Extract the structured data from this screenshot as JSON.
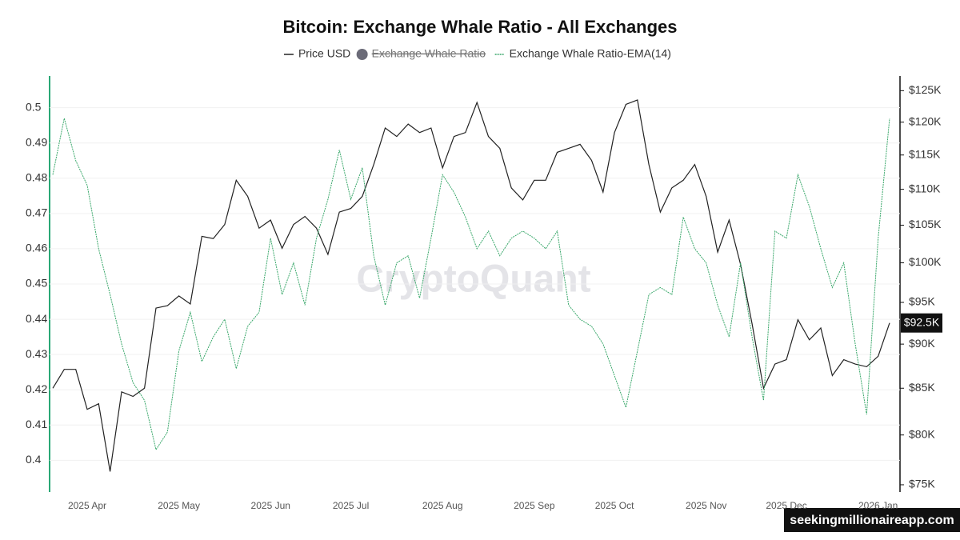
{
  "chart_data": {
    "type": "line",
    "title": "Bitcoin: Exchange Whale Ratio - All Exchanges",
    "watermark": "CryptoQuant",
    "badge": "seekingmillionaireapp.com",
    "categories": [
      null,
      null,
      null,
      "2025 Apr",
      null,
      null,
      null,
      null,
      null,
      null,
      null,
      "2025 May",
      null,
      null,
      null,
      null,
      null,
      null,
      null,
      "2025 Jun",
      null,
      null,
      null,
      null,
      null,
      null,
      "2025 Jul",
      null,
      null,
      null,
      null,
      null,
      null,
      null,
      "2025 Aug",
      null,
      null,
      null,
      null,
      null,
      null,
      null,
      "2025 Sep",
      null,
      null,
      null,
      null,
      null,
      null,
      "2025 Oct",
      null,
      null,
      null,
      null,
      null,
      null,
      null,
      "2025 Nov",
      null,
      null,
      null,
      null,
      null,
      null,
      "2025 Dec",
      null,
      null,
      null,
      null,
      null,
      null,
      null,
      "2026 Jan",
      null
    ],
    "series": [
      {
        "name": "Price USD",
        "color": "#222222",
        "axis": "y2",
        "visible": true,
        "values": [
          85000,
          87100,
          87100,
          82700,
          83300,
          76300,
          84600,
          84100,
          85000,
          94300,
          94600,
          95800,
          94800,
          103500,
          103200,
          105100,
          111300,
          109000,
          104600,
          105700,
          101900,
          105100,
          106200,
          104600,
          101100,
          106800,
          107300,
          109000,
          113600,
          119100,
          117800,
          119700,
          118400,
          119100,
          113100,
          117800,
          118400,
          123100,
          117800,
          116000,
          110200,
          108500,
          111300,
          111300,
          115400,
          116000,
          116600,
          114200,
          109600,
          118400,
          122800,
          123500,
          113600,
          106800,
          110200,
          111300,
          113600,
          109000,
          101400,
          105700,
          99800,
          92400,
          85000,
          87700,
          88200,
          92900,
          90500,
          91900,
          86400,
          88200,
          87700,
          87400,
          88600,
          92500
        ]
      },
      {
        "name": "Exchange Whale Ratio",
        "color": "#6b6b78",
        "visible": false
      },
      {
        "name": "Exchange Whale Ratio-EMA(14)",
        "color": "#3aa86b",
        "axis": "y",
        "visible": true,
        "values": [
          0.481,
          0.497,
          0.485,
          0.478,
          0.46,
          0.447,
          0.433,
          0.422,
          0.417,
          0.403,
          0.408,
          0.431,
          0.442,
          0.428,
          0.435,
          0.44,
          0.426,
          0.438,
          0.442,
          0.463,
          0.447,
          0.456,
          0.444,
          0.463,
          0.474,
          0.488,
          0.474,
          0.483,
          0.458,
          0.444,
          0.456,
          0.458,
          0.446,
          0.463,
          0.481,
          0.476,
          0.469,
          0.46,
          0.465,
          0.458,
          0.463,
          0.465,
          0.463,
          0.46,
          0.465,
          0.444,
          0.44,
          0.438,
          0.433,
          0.424,
          0.415,
          0.431,
          0.447,
          0.449,
          0.447,
          0.469,
          0.46,
          0.456,
          0.444,
          0.435,
          0.456,
          0.435,
          0.417,
          0.465,
          0.463,
          0.481,
          0.472,
          0.46,
          0.449,
          0.456,
          0.433,
          0.413,
          0.463,
          0.497
        ]
      }
    ],
    "ylim": [
      0.391,
      0.509
    ],
    "yticks": [
      0.4,
      0.41,
      0.42,
      0.43,
      0.44,
      0.45,
      0.46,
      0.47,
      0.48,
      0.49,
      0.5
    ],
    "y2lim": [
      74300,
      127400
    ],
    "y2_log": true,
    "y2ticks": [
      {
        "value": 75000,
        "label": "$75K"
      },
      {
        "value": 80000,
        "label": "$80K"
      },
      {
        "value": 85000,
        "label": "$85K"
      },
      {
        "value": 90000,
        "label": "$90K"
      },
      {
        "value": 95000,
        "label": "$95K"
      },
      {
        "value": 100000,
        "label": "$100K"
      },
      {
        "value": 105000,
        "label": "$105K"
      },
      {
        "value": 110000,
        "label": "$110K"
      },
      {
        "value": 115000,
        "label": "$115K"
      },
      {
        "value": 120000,
        "label": "$120K"
      },
      {
        "value": 125000,
        "label": "$125K"
      }
    ],
    "price_marker": {
      "value": 92500,
      "label": "$92.5K"
    },
    "grid": true
  }
}
